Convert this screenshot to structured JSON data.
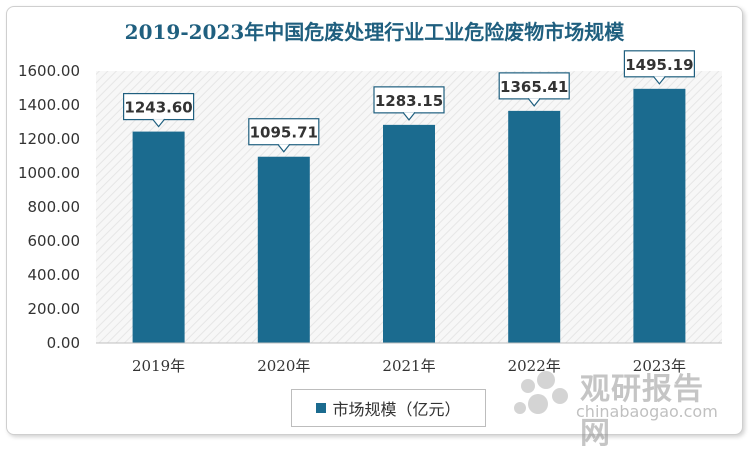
{
  "chart_data": {
    "type": "bar",
    "title": "2019-2023年中国危废处理行业工业危险废物市场规模",
    "categories": [
      "2019年",
      "2020年",
      "2021年",
      "2022年",
      "2023年"
    ],
    "series": [
      {
        "name": "市场规模（亿元）",
        "values": [
          1243.6,
          1095.71,
          1283.15,
          1365.41,
          1495.19
        ]
      }
    ],
    "value_labels": [
      "1243.60",
      "1095.71",
      "1283.15",
      "1365.41",
      "1495.19"
    ],
    "y_ticks": [
      "0.00",
      "200.00",
      "400.00",
      "600.00",
      "800.00",
      "1000.00",
      "1200.00",
      "1400.00",
      "1600.00"
    ],
    "ylim": [
      0,
      1600
    ],
    "xlabel": "",
    "ylabel": "",
    "legend_position": "bottom",
    "grid": false,
    "bar_color": "#1b6b8f"
  },
  "watermark": {
    "icon": "logo-circles-icon",
    "title": "观研报告网",
    "url": "chinabaogao.com"
  }
}
